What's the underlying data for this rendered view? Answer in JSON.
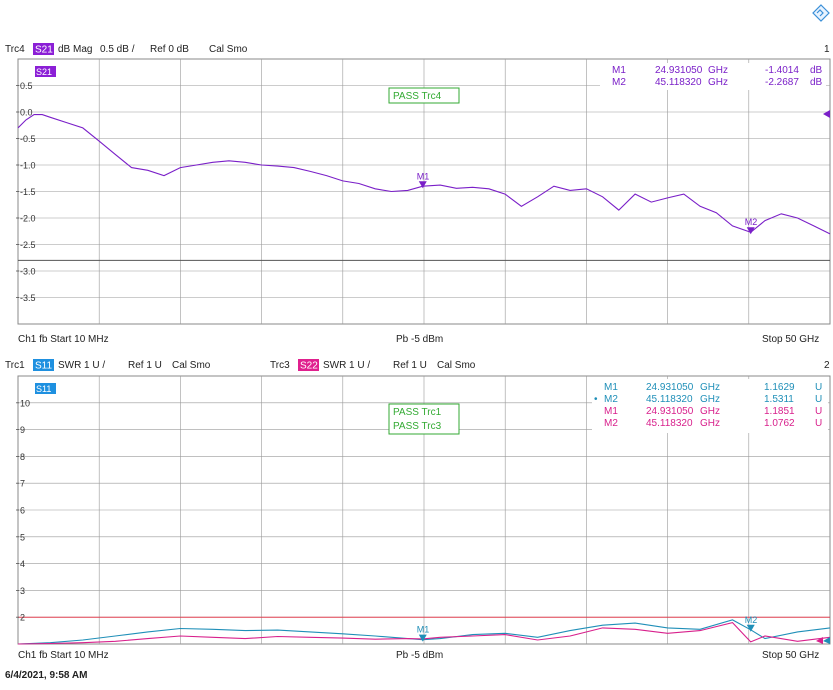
{
  "colors": {
    "trc4": "#7a1fc8",
    "trc1": "#1f8fb8",
    "trc3": "#d8208c",
    "badge_s21": "#8b1fd6",
    "badge_s11": "#1e90e0",
    "badge_s22": "#e0208e",
    "pass_green": "#33aa33",
    "limit_red": "#e04050",
    "grid": "#9a9a9a",
    "frame": "#888888",
    "ref_line": "#555555"
  },
  "logo_icon": "diamond-logo-icon",
  "footer_datetime": "6/4/2021, 9:58 AM",
  "diagram1": {
    "header": {
      "trace": "Trc4",
      "badge": "S21",
      "format": "dB Mag",
      "scale": "0.5 dB /",
      "ref": "Ref 0 dB",
      "flags": "Cal Smo",
      "number": "1"
    },
    "badge_box": "S21",
    "pass": "PASS Trc4",
    "footer": {
      "left": "Ch1  fb  Start  10 MHz",
      "center": "Pb  -5 dBm",
      "right": "Stop  50 GHz"
    },
    "markers": [
      {
        "name": "M1",
        "freq": "24.931050",
        "unit": "GHz",
        "value": "-1.4014",
        "vunit": "dB"
      },
      {
        "name": "M2",
        "freq": "45.118320",
        "unit": "GHz",
        "value": "-2.2687",
        "vunit": "dB"
      }
    ],
    "marker_labels": [
      "M1",
      "M2"
    ]
  },
  "diagram2": {
    "header": {
      "trace_a": "Trc1",
      "badge_a": "S11",
      "format_a": "SWR",
      "scale_a": "1 U /",
      "ref_a": "Ref 1 U",
      "flags_a": "Cal Smo",
      "trace_b": "Trc3",
      "badge_b": "S22",
      "format_b": "SWR",
      "scale_b": "1 U /",
      "ref_b": "Ref 1 U",
      "flags_b": "Cal Smo",
      "number": "2"
    },
    "badge_box": "S11",
    "pass_a": "PASS Trc1",
    "pass_b": "PASS Trc3",
    "footer": {
      "left": "Ch1  fb  Start  10 MHz",
      "center": "Pb  -5 dBm",
      "right": "Stop  50 GHz"
    },
    "markers": [
      {
        "name": "M1",
        "freq": "24.931050",
        "unit": "GHz",
        "value": "1.1629",
        "vunit": "U",
        "trace": "trc1"
      },
      {
        "name": "M2",
        "freq": "45.118320",
        "unit": "GHz",
        "value": "1.5311",
        "vunit": "U",
        "trace": "trc1"
      },
      {
        "name": "M1",
        "freq": "24.931050",
        "unit": "GHz",
        "value": "1.1851",
        "vunit": "U",
        "trace": "trc3"
      },
      {
        "name": "M2",
        "freq": "45.118320",
        "unit": "GHz",
        "value": "1.0762",
        "vunit": "U",
        "trace": "trc3"
      }
    ],
    "marker_labels": [
      "M1",
      "M2"
    ]
  },
  "chart_data": [
    {
      "type": "line",
      "title": "",
      "xlabel": "",
      "ylabel": "",
      "xlim": [
        0.01,
        50
      ],
      "ylim": [
        -4.0,
        1.0
      ],
      "grid": true,
      "x_divisions": 10,
      "yticks": [
        0.5,
        0.0,
        -0.5,
        -1.0,
        -1.5,
        -2.0,
        -2.5,
        -3.0,
        -3.5
      ],
      "ytick_labels": [
        "0.5",
        "0.0",
        "-0.5",
        "-1.0",
        "-1.5",
        "-2.0",
        "-2.5",
        "-3.0",
        "-3.5"
      ],
      "limit_lines": [
        -2.8
      ],
      "series": [
        {
          "name": "Trc4",
          "color": "#7a1fc8",
          "x": [
            0.01,
            0.5,
            1.0,
            1.5,
            2.0,
            3.0,
            4.0,
            5.0,
            6.0,
            7.0,
            8.0,
            9.0,
            10.0,
            11.0,
            12.0,
            13.0,
            14.0,
            15.0,
            16.0,
            17.0,
            18.0,
            19.0,
            20.0,
            21.0,
            22.0,
            23.0,
            24.0,
            24.93,
            26.0,
            27.0,
            28.0,
            29.0,
            30.0,
            31.0,
            32.0,
            33.0,
            34.0,
            35.0,
            36.0,
            37.0,
            38.0,
            39.0,
            40.0,
            41.0,
            42.0,
            43.0,
            44.0,
            45.12,
            46.0,
            47.0,
            48.0,
            49.0,
            50.0
          ],
          "y": [
            -0.3,
            -0.15,
            -0.05,
            -0.05,
            -0.1,
            -0.2,
            -0.3,
            -0.55,
            -0.8,
            -1.05,
            -1.1,
            -1.2,
            -1.05,
            -1.0,
            -0.95,
            -0.92,
            -0.95,
            -1.0,
            -1.02,
            -1.05,
            -1.12,
            -1.2,
            -1.3,
            -1.35,
            -1.45,
            -1.5,
            -1.48,
            -1.4,
            -1.38,
            -1.44,
            -1.42,
            -1.45,
            -1.55,
            -1.78,
            -1.6,
            -1.4,
            -1.48,
            -1.45,
            -1.6,
            -1.85,
            -1.55,
            -1.7,
            -1.62,
            -1.55,
            -1.78,
            -1.9,
            -2.15,
            -2.27,
            -2.05,
            -1.92,
            -2.0,
            -2.15,
            -2.3
          ]
        }
      ],
      "markers": [
        {
          "name": "M1",
          "x": 24.93,
          "y": -1.4014
        },
        {
          "name": "M2",
          "x": 45.12,
          "y": -2.2687
        }
      ]
    },
    {
      "type": "line",
      "title": "",
      "xlabel": "",
      "ylabel": "",
      "xlim": [
        0.01,
        50
      ],
      "ylim": [
        1,
        11
      ],
      "grid": true,
      "x_divisions": 10,
      "yticks": [
        10,
        9,
        8,
        7,
        6,
        5,
        4,
        3,
        2
      ],
      "ytick_labels": [
        "10",
        "9",
        "8",
        "7",
        "6",
        "5",
        "4",
        "3",
        "2"
      ],
      "limit_lines": [
        2.0
      ],
      "series": [
        {
          "name": "Trc1",
          "color": "#1f8fb8",
          "x": [
            0.01,
            2,
            4,
            6,
            8,
            10,
            12,
            14,
            16,
            18,
            20,
            22,
            24,
            24.93,
            26,
            28,
            30,
            32,
            34,
            36,
            38,
            40,
            42,
            44,
            45.12,
            46,
            48,
            50
          ],
          "y": [
            1.0,
            1.05,
            1.15,
            1.3,
            1.45,
            1.58,
            1.55,
            1.5,
            1.52,
            1.45,
            1.38,
            1.3,
            1.2,
            1.16,
            1.2,
            1.35,
            1.4,
            1.25,
            1.5,
            1.7,
            1.78,
            1.6,
            1.55,
            1.9,
            1.53,
            1.2,
            1.45,
            1.6
          ]
        },
        {
          "name": "Trc3",
          "color": "#d8208c",
          "x": [
            0.01,
            2,
            4,
            6,
            8,
            10,
            12,
            14,
            16,
            18,
            20,
            22,
            24,
            24.93,
            26,
            28,
            30,
            32,
            34,
            36,
            38,
            40,
            42,
            44,
            45.12,
            46,
            48,
            50
          ],
          "y": [
            1.0,
            1.02,
            1.05,
            1.1,
            1.2,
            1.3,
            1.25,
            1.2,
            1.28,
            1.25,
            1.22,
            1.18,
            1.2,
            1.19,
            1.25,
            1.3,
            1.35,
            1.15,
            1.3,
            1.6,
            1.55,
            1.4,
            1.5,
            1.8,
            1.08,
            1.3,
            1.1,
            1.25
          ]
        }
      ],
      "markers": [
        {
          "name": "M1",
          "x": 24.93,
          "y": 1.1629
        },
        {
          "name": "M2",
          "x": 45.12,
          "y": 1.5311
        }
      ]
    }
  ]
}
